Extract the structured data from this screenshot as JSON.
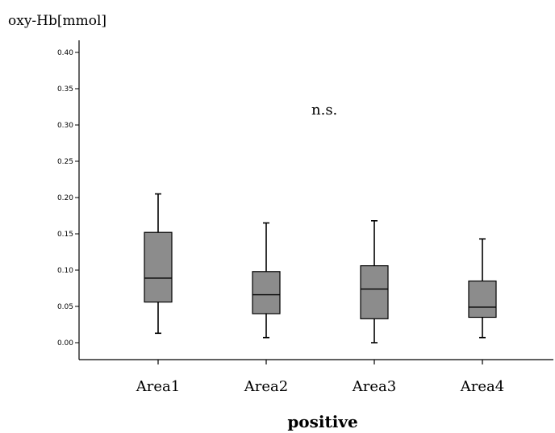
{
  "chart_data": {
    "type": "boxplot",
    "ylabel": "oxy-Hb[mmol]",
    "xlabel": "positive",
    "annotation": "n.s.",
    "ylim": [
      0,
      0.4
    ],
    "y_ticks": [
      "0.00",
      "0.05",
      "0.10",
      "0.15",
      "0.20",
      "0.25",
      "0.30",
      "0.35",
      "0.40"
    ],
    "categories": [
      "Area1",
      "Area2",
      "Area3",
      "Area4"
    ],
    "boxes": [
      {
        "whisker_low": 0.013,
        "q1": 0.056,
        "median": 0.089,
        "q3": 0.152,
        "whisker_high": 0.205
      },
      {
        "whisker_low": 0.007,
        "q1": 0.04,
        "median": 0.066,
        "q3": 0.098,
        "whisker_high": 0.165
      },
      {
        "whisker_low": 0.0,
        "q1": 0.033,
        "median": 0.074,
        "q3": 0.106,
        "whisker_high": 0.168
      },
      {
        "whisker_low": 0.007,
        "q1": 0.035,
        "median": 0.049,
        "q3": 0.085,
        "whisker_high": 0.143
      }
    ],
    "box_color": "#8c8c8c",
    "line_color": "#000000",
    "grid": false
  }
}
